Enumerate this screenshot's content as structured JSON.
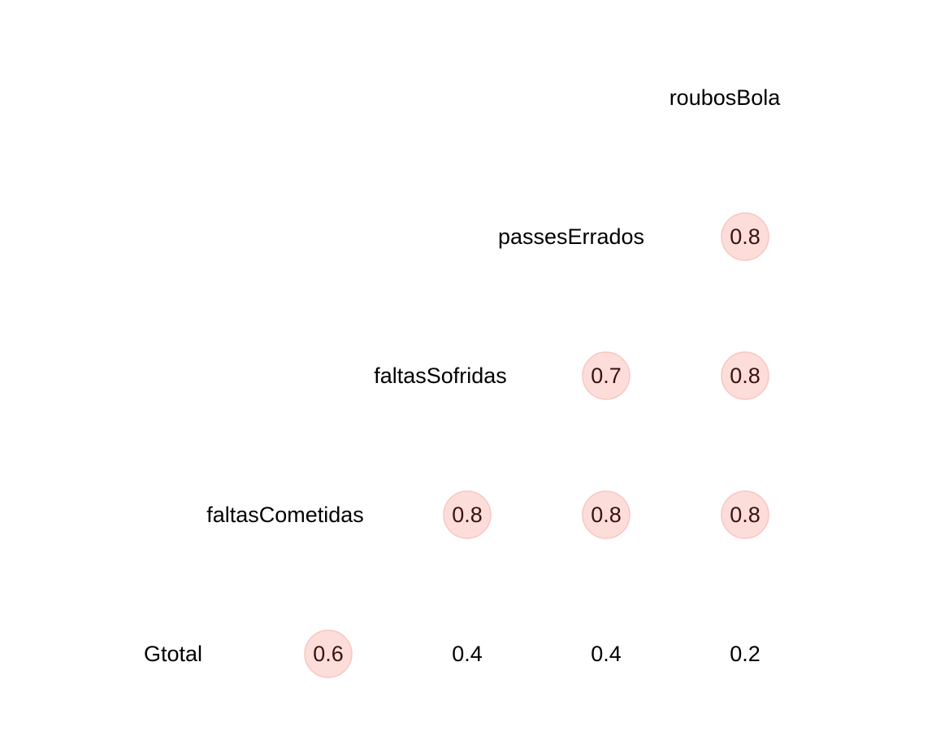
{
  "chart_data": {
    "type": "heatmap",
    "variables": [
      "Gtotal",
      "faltasCometidas",
      "faltasSofridas",
      "passesErrados",
      "roubosBola"
    ],
    "cells": [
      {
        "row": "faltasCometidas",
        "col": "Gtotal",
        "value": 0.6,
        "label": "0.6",
        "highlighted": true
      },
      {
        "row": "faltasSofridas",
        "col": "Gtotal",
        "value": 0.4,
        "label": "0.4",
        "highlighted": false
      },
      {
        "row": "faltasSofridas",
        "col": "faltasCometidas",
        "value": 0.8,
        "label": "0.8",
        "highlighted": true
      },
      {
        "row": "passesErrados",
        "col": "Gtotal",
        "value": 0.4,
        "label": "0.4",
        "highlighted": false
      },
      {
        "row": "passesErrados",
        "col": "faltasCometidas",
        "value": 0.8,
        "label": "0.8",
        "highlighted": true
      },
      {
        "row": "passesErrados",
        "col": "faltasSofridas",
        "value": 0.7,
        "label": "0.7",
        "highlighted": true
      },
      {
        "row": "roubosBola",
        "col": "Gtotal",
        "value": 0.2,
        "label": "0.2",
        "highlighted": false
      },
      {
        "row": "roubosBola",
        "col": "faltasCometidas",
        "value": 0.8,
        "label": "0.8",
        "highlighted": true
      },
      {
        "row": "roubosBola",
        "col": "faltasSofridas",
        "value": 0.8,
        "label": "0.8",
        "highlighted": true
      },
      {
        "row": "roubosBola",
        "col": "passesErrados",
        "value": 0.8,
        "label": "0.8",
        "highlighted": true
      }
    ],
    "colors": {
      "highlight_fill": "#fdddd9",
      "highlight_stroke": "#f9c6c0",
      "highlight_text": "#3a1210",
      "plain_text": "#000000"
    },
    "legend": "none",
    "grid": false
  }
}
